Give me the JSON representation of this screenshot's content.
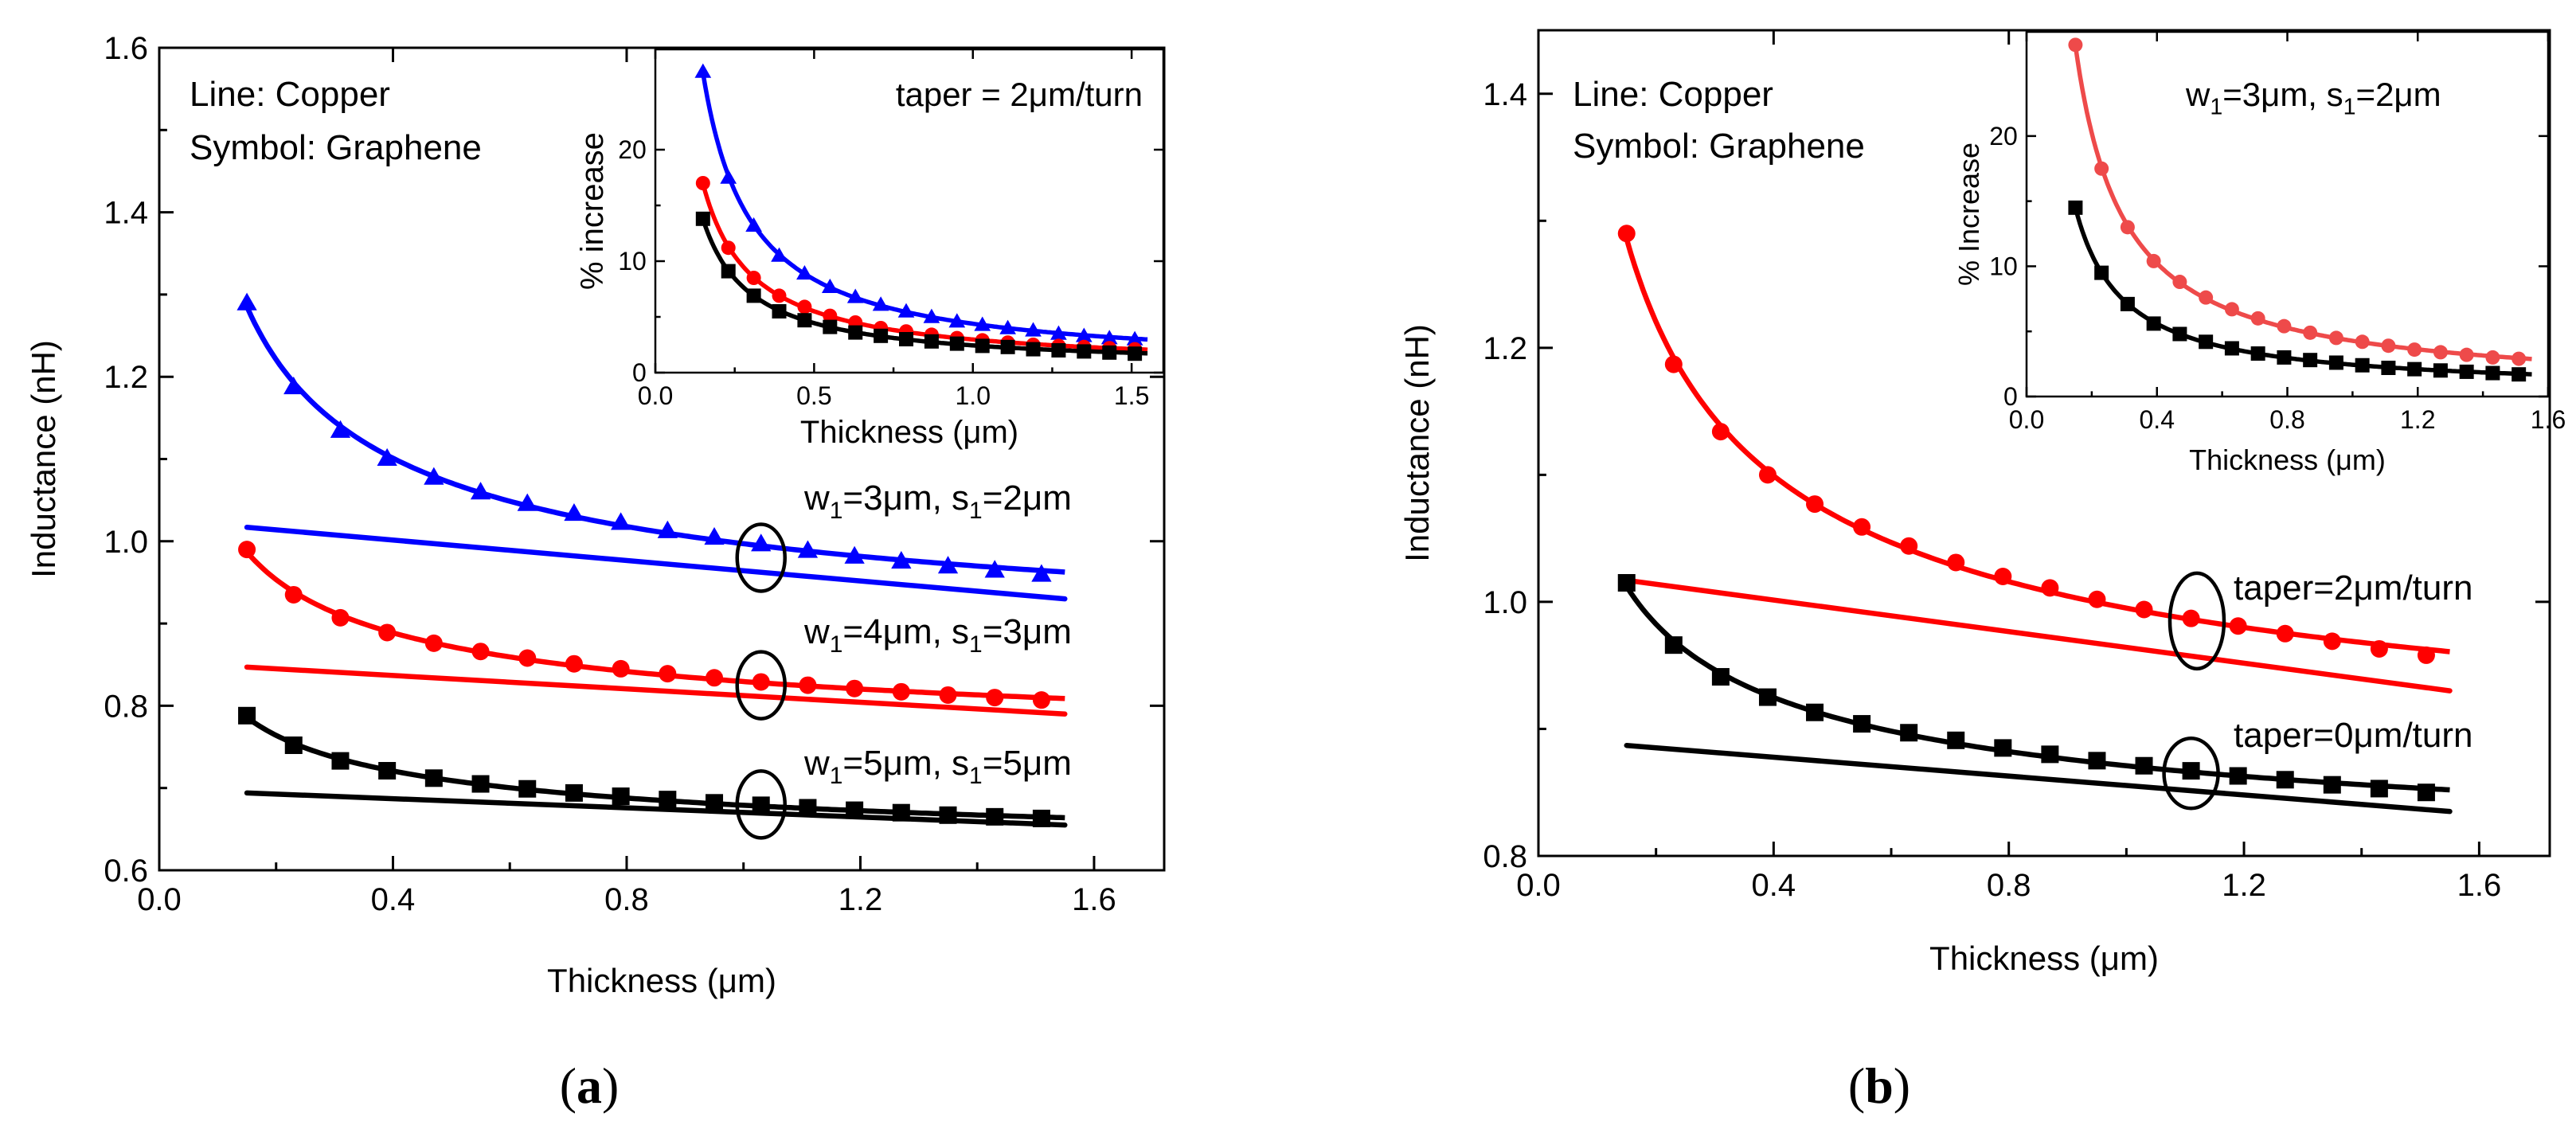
{
  "colors": {
    "black": "#000000",
    "red": "#ff0000",
    "blue": "#0000ff",
    "salmon": "#ee4a4a"
  },
  "panel_labels": [
    "a",
    "b"
  ],
  "chart_data": [
    {
      "id": "a-main",
      "type": "line",
      "xlabel": "Thickness (μm)",
      "ylabel": "Inductance (nH)",
      "xlim": [
        0.0,
        1.72
      ],
      "ylim": [
        0.6,
        1.6
      ],
      "xticks": [
        0.0,
        0.4,
        0.8,
        1.2,
        1.6
      ],
      "xticklabels": [
        "0.0",
        "0.4",
        "0.8",
        "1.2",
        "1.6"
      ],
      "yticks": [
        0.6,
        0.8,
        1.0,
        1.2,
        1.4,
        1.6
      ],
      "yticklabels": [
        "0.6",
        "0.8",
        "1.0",
        "1.2",
        "1.4",
        "1.6"
      ],
      "legend_text": [
        "Line: Copper",
        "Symbol: Graphene"
      ],
      "x": [
        0.15,
        0.23,
        0.31,
        0.39,
        0.47,
        0.55,
        0.63,
        0.71,
        0.79,
        0.87,
        0.95,
        1.03,
        1.11,
        1.19,
        1.27,
        1.35,
        1.43,
        1.51
      ],
      "series": [
        {
          "name": "w1=3µm, s1=2µm (Graphene)",
          "color": "blue",
          "marker": "triangle",
          "curve_end": 1.55,
          "values": [
            1.29,
            1.188,
            1.135,
            1.101,
            1.078,
            1.06,
            1.046,
            1.034,
            1.023,
            1.013,
            1.005,
            0.997,
            0.989,
            0.982,
            0.976,
            0.97,
            0.965,
            0.96
          ]
        },
        {
          "name": "w1=3µm, s1=2µm (Copper)",
          "color": "blue",
          "marker": "none",
          "line": [
            [
              0.15,
              1.017
            ],
            [
              1.55,
              0.93
            ]
          ]
        },
        {
          "name": "w1=4µm, s1=3µm (Graphene)",
          "color": "red",
          "marker": "circle",
          "curve_end": 1.55,
          "values": [
            0.99,
            0.935,
            0.907,
            0.889,
            0.876,
            0.866,
            0.858,
            0.851,
            0.845,
            0.839,
            0.834,
            0.829,
            0.825,
            0.821,
            0.817,
            0.813,
            0.81,
            0.807
          ]
        },
        {
          "name": "w1=4µm, s1=3µm (Copper)",
          "color": "red",
          "marker": "none",
          "line": [
            [
              0.15,
              0.847
            ],
            [
              1.55,
              0.79
            ]
          ]
        },
        {
          "name": "w1=5µm, s1=5µm (Graphene)",
          "color": "black",
          "marker": "square",
          "curve_end": 1.55,
          "values": [
            0.788,
            0.752,
            0.733,
            0.721,
            0.712,
            0.705,
            0.699,
            0.694,
            0.69,
            0.686,
            0.682,
            0.679,
            0.676,
            0.673,
            0.67,
            0.667,
            0.665,
            0.663
          ]
        },
        {
          "name": "w1=5µm, s1=5µm (Copper)",
          "color": "black",
          "marker": "none",
          "line": [
            [
              0.15,
              0.694
            ],
            [
              1.55,
              0.655
            ]
          ]
        }
      ],
      "annotations": [
        {
          "main": "w",
          "sub": "1",
          "mid": "=3μm, s",
          "sub2": "1",
          "end": "=2μm",
          "ellipse_at": [
            1.03,
            0.98
          ]
        },
        {
          "main": "w",
          "sub": "1",
          "mid": "=4μm, s",
          "sub2": "1",
          "end": "=3μm",
          "ellipse_at": [
            1.03,
            0.825
          ]
        },
        {
          "main": "w",
          "sub": "1",
          "mid": "=5μm, s",
          "sub2": "1",
          "end": "=5μm",
          "ellipse_at": [
            1.03,
            0.68
          ]
        }
      ]
    },
    {
      "id": "a-inset",
      "type": "line",
      "xlabel": "Thickness (μm)",
      "ylabel": "% increase",
      "xlim": [
        0.0,
        1.6
      ],
      "ylim": [
        0,
        29
      ],
      "xticks": [
        0.0,
        0.5,
        1.0,
        1.5
      ],
      "xticklabels": [
        "0.0",
        "0.5",
        "1.0",
        "1.5"
      ],
      "yticks": [
        0,
        10,
        20
      ],
      "yticklabels": [
        "0",
        "10",
        "20"
      ],
      "annotation": "taper = 2μm/turn",
      "x": [
        0.15,
        0.23,
        0.31,
        0.39,
        0.47,
        0.55,
        0.63,
        0.71,
        0.79,
        0.87,
        0.95,
        1.03,
        1.11,
        1.19,
        1.27,
        1.35,
        1.43,
        1.51
      ],
      "series": [
        {
          "name": "w1=3µm, s1=2µm",
          "color": "blue",
          "marker": "triangle",
          "curve_end": 1.55,
          "values": [
            27.0,
            17.5,
            13.2,
            10.5,
            8.9,
            7.7,
            6.8,
            6.1,
            5.5,
            5.0,
            4.6,
            4.3,
            4.0,
            3.8,
            3.5,
            3.3,
            3.1,
            3.0
          ]
        },
        {
          "name": "w1=4µm, s1=3µm",
          "color": "red",
          "marker": "circle",
          "curve_end": 1.55,
          "values": [
            17.0,
            11.2,
            8.5,
            6.9,
            5.9,
            5.1,
            4.5,
            4.0,
            3.7,
            3.4,
            3.1,
            2.9,
            2.7,
            2.5,
            2.4,
            2.3,
            2.2,
            2.1
          ]
        },
        {
          "name": "w1=5µm, s1=5µm",
          "color": "black",
          "marker": "square",
          "curve_end": 1.55,
          "values": [
            13.8,
            9.1,
            6.9,
            5.5,
            4.7,
            4.1,
            3.6,
            3.3,
            3.0,
            2.8,
            2.6,
            2.4,
            2.3,
            2.1,
            2.0,
            1.9,
            1.8,
            1.7
          ]
        }
      ]
    },
    {
      "id": "b-main",
      "type": "line",
      "xlabel": "Thickness (μm)",
      "ylabel": "Inductance (nH)",
      "xlim": [
        0.0,
        1.72
      ],
      "ylim": [
        0.8,
        1.45
      ],
      "xticks": [
        0.0,
        0.4,
        0.8,
        1.2,
        1.6
      ],
      "xticklabels": [
        "0.0",
        "0.4",
        "0.8",
        "1.2",
        "1.6"
      ],
      "yticks": [
        0.8,
        1.0,
        1.2,
        1.4
      ],
      "yticklabels": [
        "0.8",
        "1.0",
        "1.2",
        "1.4"
      ],
      "legend_text": [
        "Line: Copper",
        "Symbol: Graphene"
      ],
      "x": [
        0.15,
        0.23,
        0.31,
        0.39,
        0.47,
        0.55,
        0.63,
        0.71,
        0.79,
        0.87,
        0.95,
        1.03,
        1.11,
        1.19,
        1.27,
        1.35,
        1.43,
        1.51
      ],
      "series": [
        {
          "name": "taper=2µm/turn (Graphene)",
          "color": "red",
          "marker": "circle",
          "curve_end": 1.55,
          "values": [
            1.29,
            1.187,
            1.134,
            1.1,
            1.077,
            1.059,
            1.044,
            1.031,
            1.02,
            1.011,
            1.002,
            0.994,
            0.987,
            0.981,
            0.975,
            0.969,
            0.963,
            0.958
          ]
        },
        {
          "name": "taper=2µm/turn (Copper)",
          "color": "red",
          "marker": "none",
          "line": [
            [
              0.15,
              1.017
            ],
            [
              1.55,
              0.93
            ]
          ]
        },
        {
          "name": "taper=0µm/turn (Graphene)",
          "color": "black",
          "marker": "square",
          "curve_end": 1.55,
          "values": [
            1.015,
            0.966,
            0.941,
            0.925,
            0.913,
            0.904,
            0.897,
            0.891,
            0.885,
            0.88,
            0.875,
            0.871,
            0.867,
            0.863,
            0.86,
            0.856,
            0.853,
            0.85
          ]
        },
        {
          "name": "taper=0µm/turn (Copper)",
          "color": "black",
          "marker": "none",
          "line": [
            [
              0.15,
              0.887
            ],
            [
              1.55,
              0.835
            ]
          ]
        }
      ],
      "annotations": [
        {
          "text": "taper=2μm/turn",
          "ellipse_at": [
            1.12,
            0.985
          ]
        },
        {
          "text": "taper=0μm/turn",
          "ellipse_at": [
            1.11,
            0.865
          ]
        }
      ]
    },
    {
      "id": "b-inset",
      "type": "line",
      "xlabel": "Thickness (μm)",
      "ylabel": "% Increase",
      "xlim": [
        0.0,
        1.6
      ],
      "ylim": [
        0,
        28
      ],
      "xticks": [
        0.0,
        0.4,
        0.8,
        1.2,
        1.6
      ],
      "xticklabels": [
        "0.0",
        "0.4",
        "0.8",
        "1.2",
        "1.6"
      ],
      "yticks": [
        0,
        10,
        20
      ],
      "yticklabels": [
        "0",
        "10",
        "20"
      ],
      "annotation": {
        "main": "w",
        "sub": "1",
        "mid": "=3μm, s",
        "sub2": "1",
        "end": "=2μm"
      },
      "x": [
        0.15,
        0.23,
        0.31,
        0.39,
        0.47,
        0.55,
        0.63,
        0.71,
        0.79,
        0.87,
        0.95,
        1.03,
        1.11,
        1.19,
        1.27,
        1.35,
        1.43,
        1.51
      ],
      "series": [
        {
          "name": "taper=2µm/turn",
          "color": "salmon",
          "marker": "circle",
          "curve_end": 1.55,
          "values": [
            27.0,
            17.5,
            13.0,
            10.4,
            8.8,
            7.6,
            6.7,
            6.0,
            5.4,
            4.9,
            4.5,
            4.2,
            3.9,
            3.6,
            3.4,
            3.2,
            3.0,
            2.9
          ]
        },
        {
          "name": "taper=0µm/turn",
          "color": "black",
          "marker": "square",
          "curve_end": 1.55,
          "values": [
            14.5,
            9.5,
            7.1,
            5.6,
            4.8,
            4.2,
            3.7,
            3.3,
            3.0,
            2.8,
            2.6,
            2.4,
            2.2,
            2.1,
            2.0,
            1.9,
            1.8,
            1.7
          ]
        }
      ]
    }
  ]
}
